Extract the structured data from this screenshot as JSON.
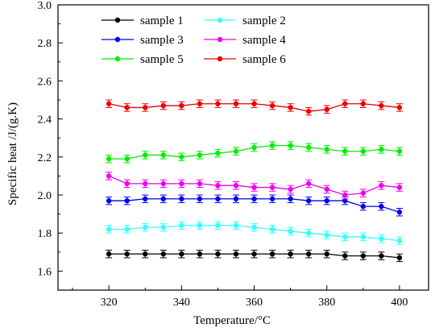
{
  "chart_data": {
    "type": "line",
    "title": "",
    "xlabel": "Temperature/°C",
    "ylabel": "Specific heat /J/(g.K)",
    "xlim": [
      306,
      408
    ],
    "ylim": [
      1.5,
      3.0
    ],
    "xticks": [
      320,
      340,
      360,
      380,
      400
    ],
    "yticks": [
      1.6,
      1.8,
      2.0,
      2.2,
      2.4,
      2.6,
      2.8,
      3.0
    ],
    "x": [
      320,
      325,
      330,
      335,
      340,
      345,
      350,
      355,
      360,
      365,
      370,
      375,
      380,
      385,
      390,
      395,
      400
    ],
    "legend_position": "top-left",
    "error_bar": 0.02,
    "series": [
      {
        "name": "sample 1",
        "color": "#000000",
        "values": [
          1.69,
          1.69,
          1.69,
          1.69,
          1.69,
          1.69,
          1.69,
          1.69,
          1.69,
          1.69,
          1.69,
          1.69,
          1.69,
          1.68,
          1.68,
          1.68,
          1.67
        ]
      },
      {
        "name": "sample 2",
        "color": "#33ffff",
        "values": [
          1.82,
          1.82,
          1.83,
          1.83,
          1.84,
          1.84,
          1.84,
          1.84,
          1.83,
          1.82,
          1.81,
          1.8,
          1.79,
          1.78,
          1.78,
          1.77,
          1.76
        ]
      },
      {
        "name": "sample 3",
        "color": "#0000ee",
        "values": [
          1.97,
          1.97,
          1.98,
          1.98,
          1.98,
          1.98,
          1.98,
          1.98,
          1.98,
          1.98,
          1.98,
          1.97,
          1.97,
          1.97,
          1.94,
          1.94,
          1.91
        ]
      },
      {
        "name": "sample 4",
        "color": "#ee00ee",
        "values": [
          2.1,
          2.06,
          2.06,
          2.06,
          2.06,
          2.06,
          2.05,
          2.05,
          2.04,
          2.04,
          2.03,
          2.06,
          2.03,
          2.0,
          2.01,
          2.05,
          2.04
        ]
      },
      {
        "name": "sample 5",
        "color": "#00ee00",
        "values": [
          2.19,
          2.19,
          2.21,
          2.21,
          2.2,
          2.21,
          2.22,
          2.23,
          2.25,
          2.26,
          2.26,
          2.25,
          2.24,
          2.23,
          2.23,
          2.24,
          2.23
        ]
      },
      {
        "name": "sample 6",
        "color": "#ee0000",
        "values": [
          2.48,
          2.46,
          2.46,
          2.47,
          2.47,
          2.48,
          2.48,
          2.48,
          2.48,
          2.47,
          2.46,
          2.44,
          2.45,
          2.48,
          2.48,
          2.47,
          2.46
        ]
      }
    ]
  }
}
